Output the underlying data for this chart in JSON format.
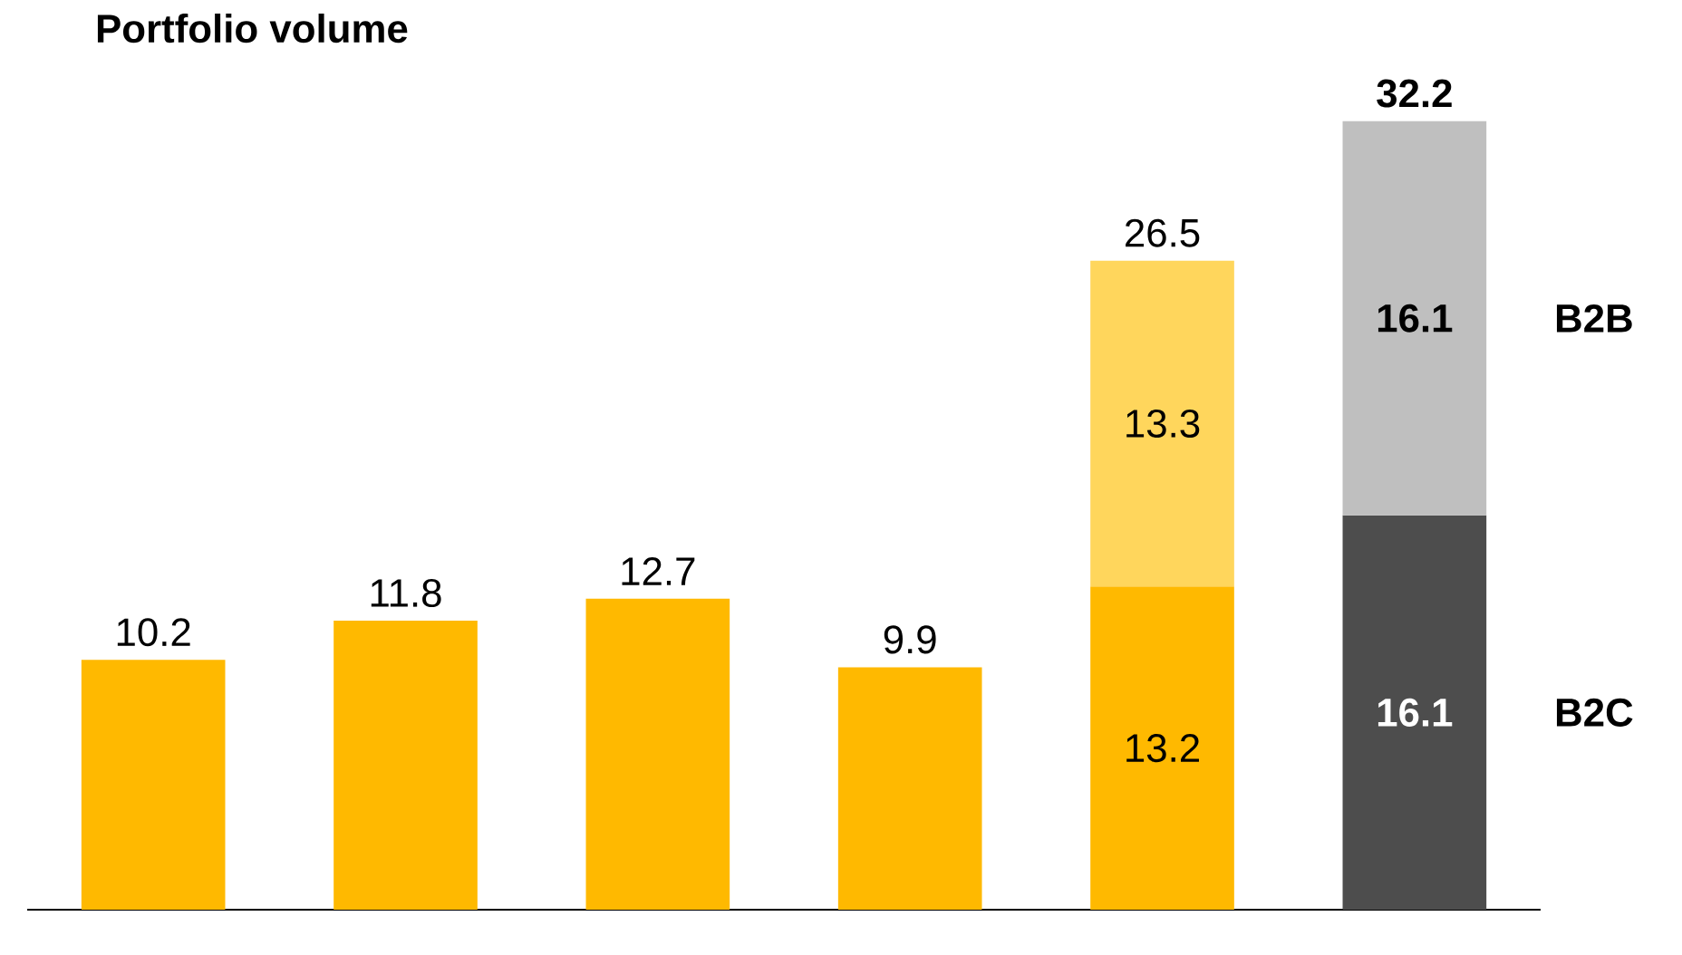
{
  "chart_data": {
    "type": "bar",
    "title": "Portfolio volume",
    "stacked": true,
    "categories": [
      null,
      null,
      null,
      null,
      null,
      null
    ],
    "series": [
      {
        "name": "B2C",
        "colors": [
          "#ffb900",
          "#ffb900",
          "#ffb900",
          "#ffb900",
          "#ffb900",
          "#4d4d4d"
        ],
        "values": [
          10.2,
          11.8,
          12.7,
          9.9,
          13.2,
          16.1
        ]
      },
      {
        "name": "B2B",
        "colors": [
          "#ffd65c",
          "#ffd65c",
          "#ffd65c",
          "#ffd65c",
          "#ffd65c",
          "#bfbfbf"
        ],
        "values": [
          null,
          null,
          null,
          null,
          13.3,
          16.1
        ]
      }
    ],
    "totals": [
      null,
      null,
      null,
      null,
      "26.5",
      "32.2"
    ],
    "data_labels": true
  }
}
